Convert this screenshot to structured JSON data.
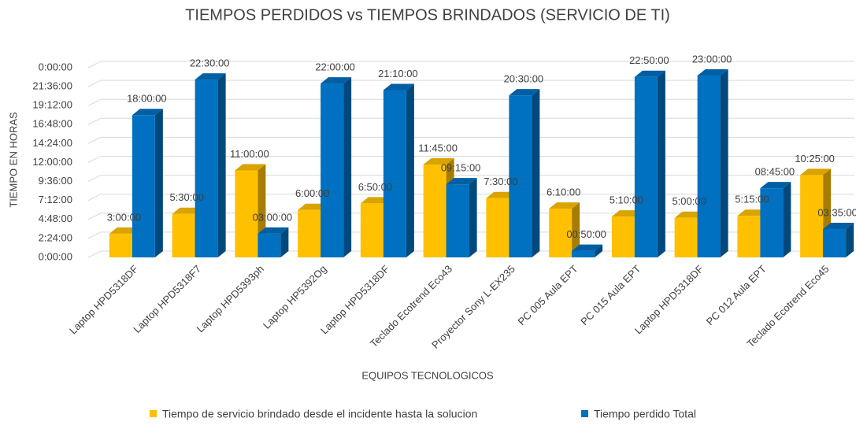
{
  "chart_data": {
    "type": "bar3d",
    "title": "TIEMPOS PERDIDOS vs TIEMPOS BRINDADOS (SERVICIO DE TI)",
    "x_label": "EQUIPOS TECNOLOGICOS",
    "y_label": "TIEMPO EN HORAS",
    "categories": [
      "Laptop HPD5318DF",
      "Laptop HPD5318F7",
      "Laptop HPD5393ph",
      "Laptop HP5392Og",
      "Laptop HPD5318DF",
      "Teclado Ecotrend Eco43",
      "Proyector Sony L-EX235",
      "PC 005 Aula EPT",
      "PC 015 Aula EPT",
      "Laptop HPD5318DF",
      "PC 012 Aula EPT",
      "Teclado Ecotrend Eco45"
    ],
    "series": [
      {
        "name": "Tiempo de servicio brindado desde el incidente hasta la solucion",
        "color": "#FFC000",
        "values": [
          3,
          5.5,
          11,
          6,
          6.833333,
          11.75,
          7.5,
          6.166667,
          5.166667,
          5,
          5.25,
          10.416667
        ],
        "value_labels": [
          "3:00:00",
          "5:30:00",
          "11:00:00",
          "6:00:00",
          "6:50:00",
          "11:45:00",
          "7:30:00",
          "6:10:00",
          "5:10:00",
          "5:00:00",
          "5:15:00",
          "10:25:00"
        ]
      },
      {
        "name": "Tiempo perdido Total",
        "color": "#0070C0",
        "values": [
          18,
          22.5,
          3,
          22,
          21.166667,
          9.25,
          20.5,
          0.833333,
          22.833333,
          23,
          8.75,
          3.583333
        ],
        "value_labels": [
          "18:00:00",
          "22:30:00",
          "03:00:00",
          "22:00:00",
          "21:10:00",
          "09:15:00",
          "20:30:00",
          "00:50:00",
          "22:50:00",
          "23:00:00",
          "08:45:00",
          "03:35:00"
        ]
      }
    ],
    "ylim": [
      0,
      24
    ],
    "yticks": [
      {
        "value": 0,
        "label": "0:00:00"
      },
      {
        "value": 2.4,
        "label": "2:24:00"
      },
      {
        "value": 4.8,
        "label": "4:48:00"
      },
      {
        "value": 7.2,
        "label": "7:12:00"
      },
      {
        "value": 9.6,
        "label": "9:36:00"
      },
      {
        "value": 12,
        "label": "12:00:00"
      },
      {
        "value": 14.4,
        "label": "14:24:00"
      },
      {
        "value": 16.8,
        "label": "16:48:00"
      },
      {
        "value": 19.2,
        "label": "19:12:00"
      },
      {
        "value": 21.6,
        "label": "21:36:00"
      },
      {
        "value": 24,
        "label": "0:00:00"
      }
    ],
    "grid": true,
    "legend": "bottom"
  }
}
